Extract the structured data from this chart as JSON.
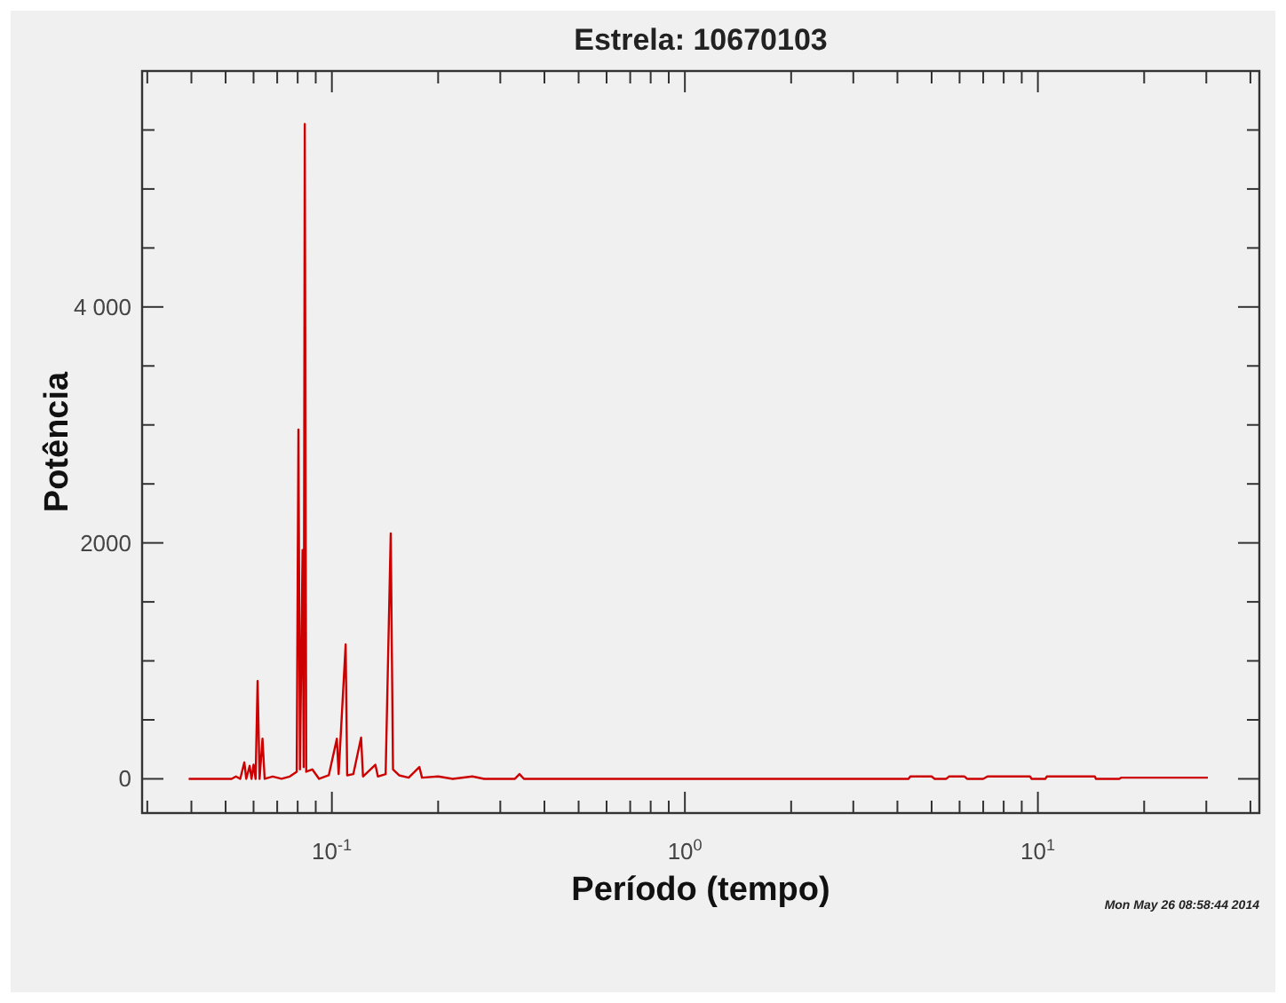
{
  "chart_data": {
    "type": "line",
    "title": "Estrela: 10670103",
    "xlabel": "Período (tempo)",
    "ylabel": "Potência",
    "annotations": [
      "Mon May 26 08:58:44 2014"
    ],
    "log": "x",
    "grid": false,
    "marker": "none",
    "line_style": "solid",
    "xlim": [
      0.029,
      42.4
    ],
    "ylim": [
      -290,
      6000
    ],
    "xticks": [
      {
        "value": 0.03,
        "label": null
      },
      {
        "value": 0.04,
        "label": null
      },
      {
        "value": 0.05,
        "label": null
      },
      {
        "value": 0.06,
        "label": null
      },
      {
        "value": 0.07,
        "label": null
      },
      {
        "value": 0.08,
        "label": null
      },
      {
        "value": 0.09,
        "label": null
      },
      {
        "value": 0.1,
        "label": "10$^{-1}$"
      },
      {
        "value": 0.2,
        "label": null
      },
      {
        "value": 0.3,
        "label": null
      },
      {
        "value": 0.4,
        "label": null
      },
      {
        "value": 0.5,
        "label": null
      },
      {
        "value": 0.6,
        "label": null
      },
      {
        "value": 0.7,
        "label": null
      },
      {
        "value": 0.8,
        "label": null
      },
      {
        "value": 0.9,
        "label": null
      },
      {
        "value": 1,
        "label": "10$^{0}$"
      },
      {
        "value": 2,
        "label": null
      },
      {
        "value": 3,
        "label": null
      },
      {
        "value": 4,
        "label": null
      },
      {
        "value": 5,
        "label": null
      },
      {
        "value": 6,
        "label": null
      },
      {
        "value": 7,
        "label": null
      },
      {
        "value": 8,
        "label": null
      },
      {
        "value": 9,
        "label": null
      },
      {
        "value": 10,
        "label": "10$^{1}$"
      },
      {
        "value": 20,
        "label": null
      },
      {
        "value": 30,
        "label": null
      },
      {
        "value": 40,
        "label": null
      }
    ],
    "yticks": [
      0,
      {
        "value": 500,
        "label": null
      },
      {
        "value": 1000,
        "label": null
      },
      {
        "value": 1500,
        "label": null
      },
      2000,
      {
        "value": 2500,
        "label": null
      },
      {
        "value": 3000,
        "label": null
      },
      {
        "value": 3500,
        "label": null
      },
      {
        "value": 4000,
        "label": "4 000"
      },
      {
        "value": 4500,
        "label": null
      },
      {
        "value": 5000,
        "label": null
      },
      {
        "value": 5500,
        "label": null
      }
    ],
    "series": [
      {
        "color": "#cc0000",
        "x": [
          0.0393,
          0.052,
          0.0535,
          0.055,
          0.0565,
          0.0572,
          0.0585,
          0.0592,
          0.06,
          0.0608,
          0.0616,
          0.0624,
          0.0636,
          0.0645,
          0.068,
          0.072,
          0.076,
          0.0795,
          0.0804,
          0.0812,
          0.0826,
          0.0832,
          0.0838,
          0.0846,
          0.088,
          0.092,
          0.098,
          0.1033,
          0.1045,
          0.1094,
          0.1105,
          0.115,
          0.121,
          0.1225,
          0.1328,
          0.135,
          0.142,
          0.1468,
          0.149,
          0.155,
          0.165,
          0.177,
          0.18,
          0.2,
          0.22,
          0.25,
          0.27,
          0.33,
          0.34,
          0.35,
          4.3,
          4.35,
          5.0,
          5.1,
          5.5,
          5.6,
          6.2,
          6.3,
          7.0,
          7.2,
          9.5,
          9.6,
          10.5,
          10.6,
          14.5,
          14.6,
          17,
          17.2,
          30.3
        ],
        "values": [
          0,
          0,
          20,
          0,
          140,
          0,
          110,
          0,
          120,
          0,
          830,
          0,
          340,
          0,
          20,
          0,
          20,
          60,
          2960,
          80,
          1940,
          100,
          5550,
          60,
          80,
          0,
          30,
          340,
          40,
          1140,
          30,
          40,
          350,
          20,
          120,
          20,
          40,
          2080,
          80,
          30,
          10,
          100,
          10,
          20,
          0,
          20,
          0,
          0,
          40,
          0,
          0,
          20,
          20,
          0,
          0,
          20,
          20,
          0,
          0,
          20,
          20,
          0,
          0,
          20,
          20,
          0,
          0,
          10,
          10
        ]
      }
    ]
  }
}
